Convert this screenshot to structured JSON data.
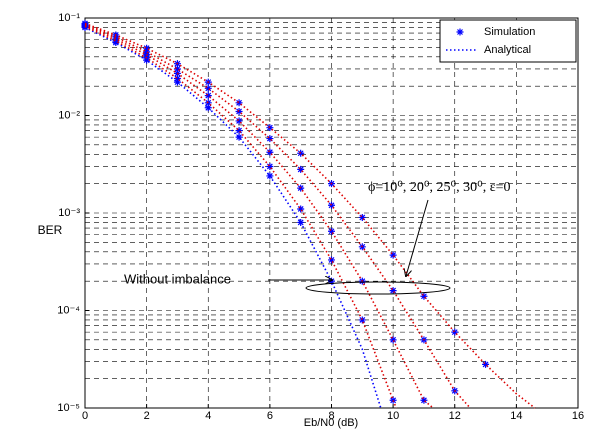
{
  "chart_data": {
    "type": "line",
    "log_y": true,
    "grid": true,
    "legend": "upper right",
    "xlabel": "Eb/N0 (dB)",
    "ylabel": "BER",
    "xlim": [
      0,
      16
    ],
    "xticks": [
      0,
      2,
      4,
      6,
      8,
      10,
      12,
      14,
      16
    ],
    "ylim": [
      1e-05,
      0.1
    ],
    "yticks": [
      {
        "value": 1e-05,
        "label": "10⁻⁵"
      },
      {
        "value": 0.0001,
        "label": "10⁻⁴"
      },
      {
        "value": 0.001,
        "label": "10⁻³"
      },
      {
        "value": 0.01,
        "label": "10⁻²"
      },
      {
        "value": 0.1,
        "label": "10⁻¹"
      }
    ],
    "series": [
      {
        "name": "Simulation",
        "color": "#0000ff",
        "marker": "*",
        "curves": [
          {
            "x": [
              0,
              1,
              2,
              3,
              4,
              5,
              6,
              7,
              8
            ],
            "values": [
              0.08,
              0.056,
              0.037,
              0.022,
              0.012,
              0.006,
              0.0024,
              0.0008,
              0.0002
            ]
          },
          {
            "x": [
              0,
              1,
              2,
              3,
              4,
              5,
              6,
              7,
              8,
              9,
              10
            ],
            "values": [
              0.082,
              0.058,
              0.039,
              0.024,
              0.0135,
              0.007,
              0.003,
              0.0011,
              0.00033,
              8e-05,
              1.2e-05
            ]
          },
          {
            "x": [
              0,
              1,
              2,
              3,
              4,
              5,
              6,
              7,
              8,
              9,
              10,
              11
            ],
            "values": [
              0.084,
              0.061,
              0.042,
              0.027,
              0.016,
              0.0088,
              0.0042,
              0.0018,
              0.00065,
              0.0002,
              5e-05,
              1.2e-05
            ]
          },
          {
            "x": [
              0,
              1,
              2,
              3,
              4,
              5,
              6,
              7,
              8,
              9,
              10,
              11,
              12
            ],
            "values": [
              0.086,
              0.064,
              0.045,
              0.03,
              0.019,
              0.011,
              0.0058,
              0.0028,
              0.0012,
              0.00045,
              0.00016,
              5e-05,
              1.5e-05
            ]
          },
          {
            "x": [
              0,
              1,
              2,
              3,
              4,
              5,
              6,
              7,
              8,
              9,
              10,
              11,
              12,
              13
            ],
            "values": [
              0.088,
              0.067,
              0.049,
              0.034,
              0.022,
              0.0135,
              0.0075,
              0.0041,
              0.002,
              0.0009,
              0.00037,
              0.00014,
              6e-05,
              2.8e-05
            ]
          }
        ]
      },
      {
        "name": "Analytical",
        "color": "#0000ff",
        "dash": "dotted",
        "curves": [
          {
            "color": "#0000ff",
            "x": [
              0,
              1,
              2,
              3,
              4,
              5,
              6,
              7,
              8,
              9,
              9.6
            ],
            "values": [
              0.08,
              0.056,
              0.037,
              0.022,
              0.012,
              0.006,
              0.0024,
              0.0008,
              0.0002,
              4e-05,
              1e-05
            ]
          },
          {
            "color": "#dd0000",
            "x": [
              0,
              1,
              2,
              3,
              4,
              5,
              6,
              7,
              8,
              9,
              10,
              10.1
            ],
            "values": [
              0.082,
              0.058,
              0.039,
              0.024,
              0.0135,
              0.007,
              0.003,
              0.0011,
              0.00033,
              8e-05,
              1.2e-05,
              1e-05
            ]
          },
          {
            "color": "#dd0000",
            "x": [
              0,
              1,
              2,
              3,
              4,
              5,
              6,
              7,
              8,
              9,
              10,
              11,
              11.3
            ],
            "values": [
              0.084,
              0.061,
              0.042,
              0.027,
              0.016,
              0.0088,
              0.0042,
              0.0018,
              0.00065,
              0.0002,
              5e-05,
              1.2e-05,
              1e-05
            ]
          },
          {
            "color": "#dd0000",
            "x": [
              0,
              1,
              2,
              3,
              4,
              5,
              6,
              7,
              8,
              9,
              10,
              11,
              12,
              12.5
            ],
            "values": [
              0.086,
              0.064,
              0.045,
              0.03,
              0.019,
              0.011,
              0.0058,
              0.0028,
              0.0012,
              0.00045,
              0.00016,
              5e-05,
              1.5e-05,
              1e-05
            ]
          },
          {
            "color": "#dd0000",
            "x": [
              0,
              1,
              2,
              3,
              4,
              5,
              6,
              7,
              8,
              9,
              10,
              11,
              12,
              13,
              14,
              14.6
            ],
            "values": [
              0.088,
              0.067,
              0.049,
              0.034,
              0.022,
              0.0135,
              0.0075,
              0.0041,
              0.002,
              0.0009,
              0.00037,
              0.00014,
              6e-05,
              2.8e-05,
              1.4e-05,
              1e-05
            ]
          }
        ]
      }
    ],
    "annotations": [
      "Without imbalance",
      "ϕ=10⁰, 20⁰, 25⁰, 30⁰, ε=0"
    ]
  }
}
